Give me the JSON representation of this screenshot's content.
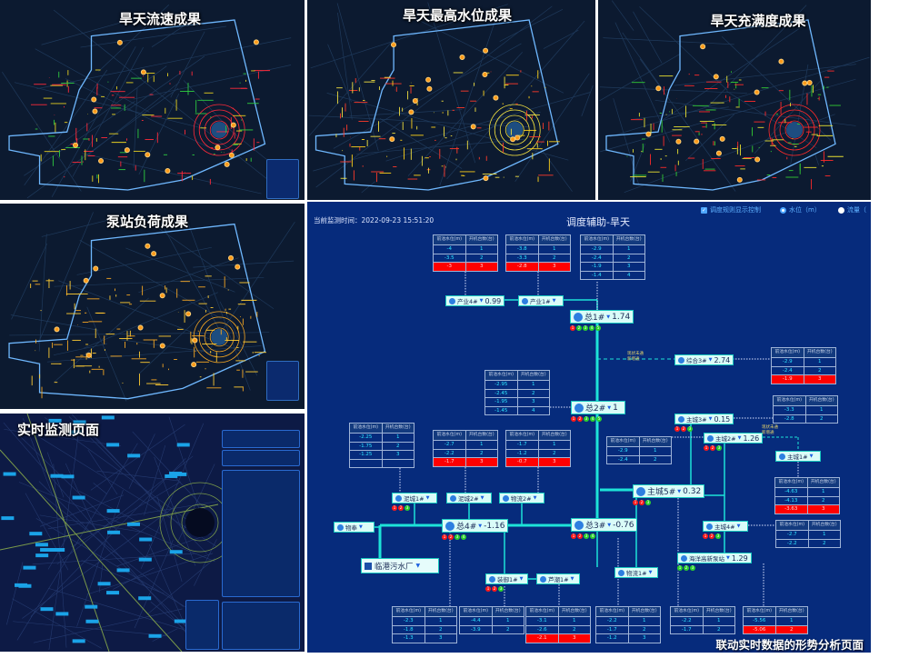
{
  "panels": [
    {
      "title": "旱天流速成果"
    },
    {
      "title": "旱天最高水位成果"
    },
    {
      "title": "旱天充满度成果"
    },
    {
      "title": "泵站负荷成果"
    },
    {
      "title": "实时监测页面"
    }
  ],
  "colors": {
    "flow_lines": [
      "#ff2a3a",
      "#e6d020",
      "#2ecc40"
    ],
    "level_lines": [
      "#f2e040",
      "#ffd21a",
      "#ff3a2a"
    ],
    "fill_lines": [
      "#ff2a2a",
      "#e8e030",
      "#33cc33"
    ],
    "load_lines": [
      "#f5a623",
      "#ffcc33"
    ],
    "analysis_bg": "#062b7c",
    "pipe": "#1de3d8",
    "alarm": "#ff0000"
  },
  "analysis": {
    "timestamp_label": "当前监测时间：",
    "timestamp": "2022-09-23 15:51:20",
    "title": "调度辅助-旱天",
    "controls": {
      "rule_display": "调度规则显示控制",
      "water_level": "水位（m）",
      "flow": "流量（"
    },
    "table_headers": [
      "前池水位(m)",
      "开机台数(台)"
    ],
    "tables": [
      {
        "rows": [
          [
            "-4",
            "1",
            false
          ],
          [
            "-3.5",
            "2",
            false
          ],
          [
            "-3",
            "3",
            true
          ]
        ]
      },
      {
        "rows": [
          [
            "-3.8",
            "1",
            false
          ],
          [
            "-3.3",
            "2",
            false
          ],
          [
            "-2.8",
            "3",
            true
          ]
        ]
      },
      {
        "rows": [
          [
            "-2.9",
            "1",
            false
          ],
          [
            "-2.4",
            "2",
            false
          ],
          [
            "-1.9",
            "3",
            false
          ],
          [
            "-1.4",
            "4",
            false
          ]
        ]
      },
      {
        "rows": [
          [
            "-2.9",
            "1",
            false
          ],
          [
            "-2.4",
            "2",
            false
          ],
          [
            "-1.9",
            "3",
            true
          ]
        ]
      },
      {
        "rows": [
          [
            "-2.95",
            "1",
            false
          ],
          [
            "-2.45",
            "2",
            false
          ],
          [
            "-1.95",
            "3",
            false
          ],
          [
            "-1.45",
            "4",
            false
          ]
        ]
      },
      {
        "rows": [
          [
            "-2.25",
            "1",
            false
          ],
          [
            "-1.75",
            "2",
            false
          ],
          [
            "-1.25",
            "3",
            false
          ],
          [
            "",
            "",
            false
          ]
        ]
      },
      {
        "rows": [
          [
            "-2.7",
            "1",
            false
          ],
          [
            "-2.2",
            "2",
            false
          ],
          [
            "-1.7",
            "3",
            true
          ]
        ]
      },
      {
        "rows": [
          [
            "-1.7",
            "1",
            false
          ],
          [
            "-1.2",
            "2",
            false
          ],
          [
            "-0.7",
            "3",
            true
          ]
        ]
      },
      {
        "rows": [
          [
            "-2.9",
            "1",
            false
          ],
          [
            "-2.4",
            "2",
            false
          ]
        ]
      },
      {
        "rows": [
          [
            "-3.3",
            "1",
            false
          ],
          [
            "-2.8",
            "2",
            false
          ]
        ]
      },
      {
        "rows": [
          [
            "-4.63",
            "1",
            false
          ],
          [
            "-4.13",
            "2",
            false
          ],
          [
            "-3.63",
            "3",
            true
          ]
        ]
      },
      {
        "rows": [
          [
            "-2.7",
            "1",
            false
          ],
          [
            "-2.2",
            "2",
            false
          ]
        ]
      },
      {
        "rows": [
          [
            "-2.3",
            "1",
            false
          ],
          [
            "-1.8",
            "2",
            false
          ],
          [
            "-1.3",
            "3",
            false
          ]
        ]
      },
      {
        "rows": [
          [
            "-4.4",
            "1",
            false
          ],
          [
            "-3.9",
            "2",
            false
          ]
        ]
      },
      {
        "rows": [
          [
            "-3.1",
            "1",
            false
          ],
          [
            "-2.6",
            "2",
            false
          ],
          [
            "-2.1",
            "3",
            true
          ]
        ]
      },
      {
        "rows": [
          [
            "-2.2",
            "1",
            false
          ],
          [
            "-1.7",
            "2",
            false
          ],
          [
            "-1.2",
            "3",
            false
          ]
        ]
      },
      {
        "rows": [
          [
            "-2.2",
            "1",
            false
          ],
          [
            "-1.7",
            "2",
            false
          ]
        ]
      },
      {
        "rows": [
          [
            "-5.56",
            "1",
            false
          ],
          [
            "-5.06",
            "2",
            true
          ]
        ]
      }
    ],
    "nodes": [
      {
        "name": "产业4#",
        "value": "0.99",
        "dots": []
      },
      {
        "name": "产业1#",
        "value": "",
        "dots": []
      },
      {
        "name": "总1#",
        "value": "1.74",
        "dots": [
          "r",
          "g",
          "g",
          "g",
          "g"
        ]
      },
      {
        "name": "综合3#",
        "value": "2.74",
        "dots": []
      },
      {
        "name": "总2#",
        "value": "1",
        "dots": [
          "r",
          "r",
          "g",
          "g",
          "g"
        ]
      },
      {
        "name": "主城3#",
        "value": "0.15",
        "dots": [
          "r",
          "r",
          "g"
        ]
      },
      {
        "name": "主城2#",
        "value": "1.26",
        "dots": [
          "r",
          "r",
          "g"
        ]
      },
      {
        "name": "主城1#",
        "value": "",
        "dots": []
      },
      {
        "name": "主城5#",
        "value": "0.32",
        "dots": [
          "r",
          "r",
          "g"
        ]
      },
      {
        "name": "泥城1#",
        "value": "",
        "dots": [
          "r",
          "r",
          "g"
        ]
      },
      {
        "name": "泥城2#",
        "value": "",
        "dots": []
      },
      {
        "name": "物流2#",
        "value": "",
        "dots": []
      },
      {
        "name": "物奉",
        "value": "",
        "dots": []
      },
      {
        "name": "总4#",
        "value": "-1.16",
        "dots": [
          "r",
          "r",
          "g",
          "g"
        ]
      },
      {
        "name": "总3#",
        "value": "-0.76",
        "dots": [
          "r",
          "r",
          "g",
          "g"
        ]
      },
      {
        "name": "主城4#",
        "value": "",
        "dots": [
          "r",
          "r",
          "g"
        ]
      },
      {
        "name": "海洋高新泵站",
        "value": "1.29",
        "dots": [
          "g",
          "g",
          "g"
        ]
      },
      {
        "name": "装御1#",
        "value": "",
        "dots": [
          "r",
          "r",
          "g"
        ]
      },
      {
        "name": "芦潮1#",
        "value": "",
        "dots": []
      },
      {
        "name": "物流1#",
        "value": "",
        "dots": []
      }
    ],
    "plant": "临港污水厂",
    "annotations": [
      {
        "line1": "现状未通",
        "line2": "新增通"
      },
      {
        "line1": "现状未通",
        "line2": "新增通"
      }
    ],
    "caption": "联动实时数据的形势分析页面"
  }
}
